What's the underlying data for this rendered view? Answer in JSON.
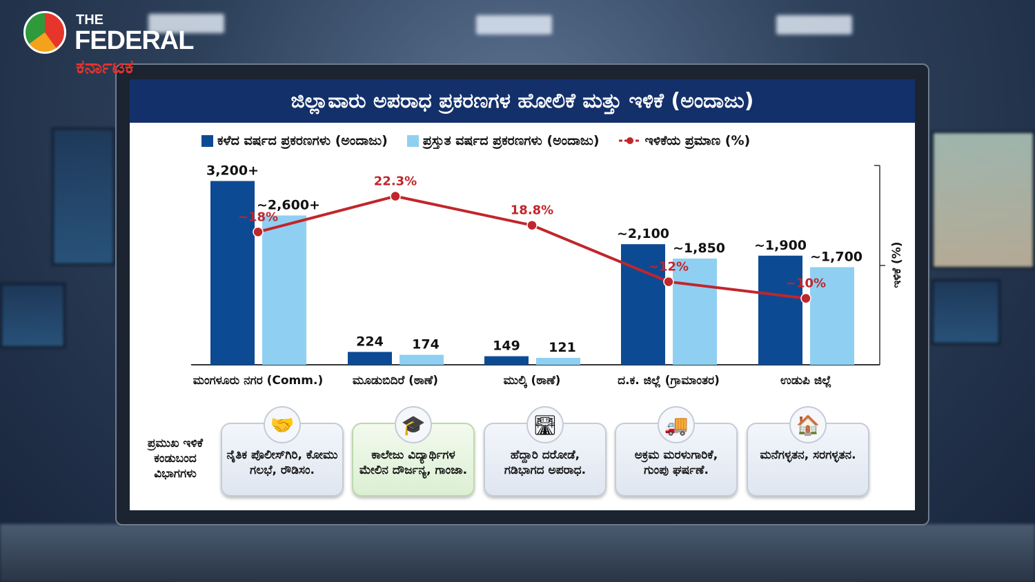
{
  "logo": {
    "top": "THE",
    "main": "FEDERAL",
    "sub": "ಕರ್ನಾಟಕ"
  },
  "chart_data": {
    "type": "bar",
    "title": "ಜಿಲ್ಲಾವಾರು ಅಪರಾಧ ಪ್ರಕರಣಗಳ ಹೋಲಿಕೆ ಮತ್ತು ಇಳಿಕೆ (ಅಂದಾಜು)",
    "categories": [
      "ಮಂಗಳೂರು ನಗರ (Comm.)",
      "ಮೂಡುಬಿದಿರೆ (ಠಾಣೆ)",
      "ಮುಲ್ಕಿ (ಠಾಣೆ)",
      "ದ.ಕ. ಜಿಲ್ಲೆ (ಗ್ರಾಮಾಂತರ)",
      "ಉಡುಪಿ ಜಿಲ್ಲೆ"
    ],
    "series": [
      {
        "name": "ಕಳೆದ ವರ್ಷದ ಪ್ರಕರಣಗಳು (ಅಂದಾಜು)",
        "type": "bar",
        "color": "#0d4a94",
        "values": [
          3200,
          224,
          149,
          2100,
          1900
        ],
        "labels": [
          "3,200+",
          "224",
          "149",
          "~2,100",
          "~1,900"
        ]
      },
      {
        "name": "ಪ್ರಸ್ತುತ ವರ್ಷದ ಪ್ರಕರಣಗಳು (ಅಂದಾಜು)",
        "type": "bar",
        "color": "#8fd0f2",
        "values": [
          2600,
          174,
          121,
          1850,
          1700
        ],
        "labels": [
          "~2,600+",
          "174",
          "121",
          "~1,850",
          "~1,700"
        ]
      },
      {
        "name": "ಇಳಿಕೆಯ ಪ್ರಮಾಣ (%)",
        "type": "line",
        "axis": "right",
        "color": "#c0262b",
        "values": [
          18,
          22.3,
          18.8,
          12,
          10
        ],
        "labels": [
          "~18%",
          "22.3%",
          "18.8%",
          "~12%",
          "~10%"
        ]
      }
    ],
    "ylim": [
      0,
      3470
    ],
    "y2lim": [
      2,
      26
    ],
    "y2label": "ಇಳಿಕೆ (%)",
    "legend": "top"
  },
  "categories_panel": {
    "label": "ಪ್ರಮುಖ ಇಳಿಕೆ ಕಂಡುಬಂದ ವಿಭಾಗಗಳು",
    "cards": [
      {
        "icon": "handshake-icon",
        "glyph": "🤝",
        "text": "ನೈತಿಕ ಪೊಲೀಸ್‌ಗಿರಿ, ಕೋಮು ಗಲಭೆ, ರೌಡಿಸಂ."
      },
      {
        "icon": "graduation-cap-icon",
        "glyph": "🎓",
        "text": "ಕಾಲೇಜು ವಿದ್ಯಾರ್ಥಿಗಳ ಮೇಲಿನ ದೌರ್ಜನ್ಯ, ಗಾಂಜಾ."
      },
      {
        "icon": "road-icon",
        "glyph": "🛣",
        "text": "ಹೆದ್ದಾರಿ ದರೋಡೆ, ಗಡಿಭಾಗದ ಅಪರಾಧ."
      },
      {
        "icon": "truck-icon",
        "glyph": "🚚",
        "text": "ಅಕ್ರಮ ಮರಳುಗಾರಿಕೆ, ಗುಂಪು ಘರ್ಷಣೆ."
      },
      {
        "icon": "house-key-icon",
        "glyph": "🏠",
        "text": "ಮನೆಗಳ್ಳತನ, ಸರಗಳ್ಳತನ."
      }
    ]
  }
}
